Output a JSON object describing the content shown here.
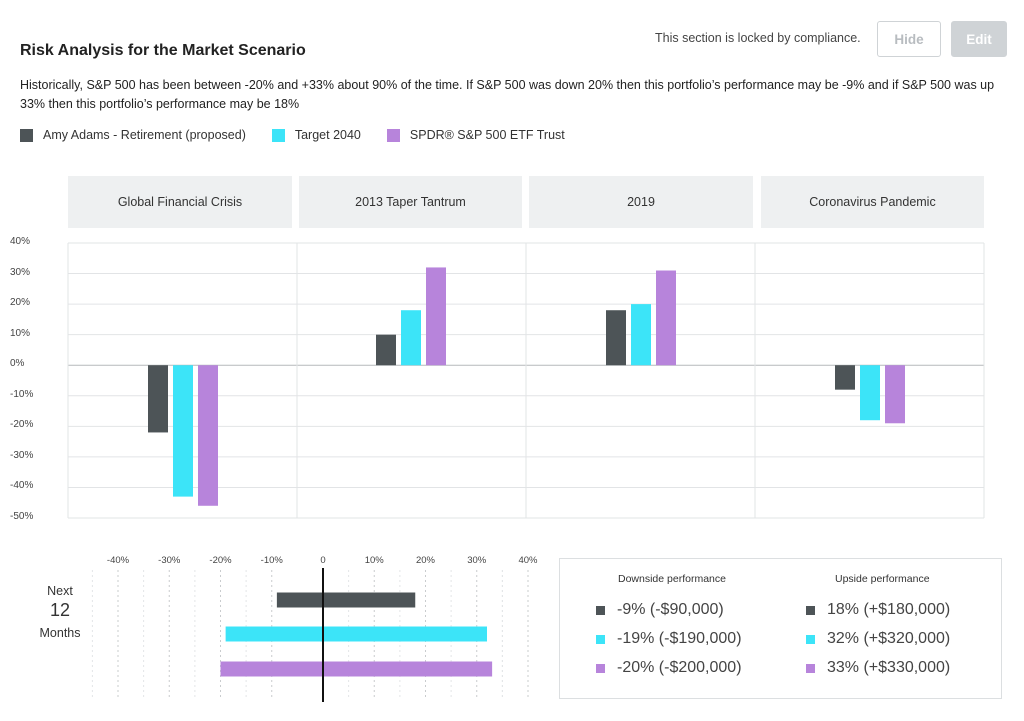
{
  "header": {
    "title": "Risk Analysis for the Market Scenario",
    "locked_text": "This section is locked by compliance.",
    "hide_label": "Hide",
    "edit_label": "Edit"
  },
  "description": "Historically, S&P 500 has been between -20% and +33% about 90% of the time. If S&P 500 was down 20% then this portfolio’s performance may be -9% and if S&P 500 was up 33% then this portfolio’s performance may be 18%",
  "colors": {
    "dark": "#4d5457",
    "cyan": "#3ce4f8",
    "purple": "#b784db",
    "grid": "#e2e4e6",
    "header_bg": "#eef0f1"
  },
  "legend": [
    {
      "label": "Amy Adams - Retirement (proposed)",
      "color": "#4d5457"
    },
    {
      "label": "Target 2040",
      "color": "#3ce4f8"
    },
    {
      "label": "SPDR® S&P 500 ETF Trust",
      "color": "#b784db"
    }
  ],
  "chart_data": [
    {
      "type": "bar",
      "categories": [
        "Global Financial Crisis",
        "2013 Taper Tantrum",
        "2019",
        "Coronavirus Pandemic"
      ],
      "series": [
        {
          "name": "Amy Adams - Retirement (proposed)",
          "color": "#4d5457",
          "values": [
            -22,
            10,
            18,
            -8
          ]
        },
        {
          "name": "Target 2040",
          "color": "#3ce4f8",
          "values": [
            -43,
            18,
            20,
            -18
          ]
        },
        {
          "name": "SPDR® S&P 500 ETF Trust",
          "color": "#b784db",
          "values": [
            -46,
            32,
            31,
            -19
          ]
        }
      ],
      "ylim": [
        -50,
        40
      ],
      "yticks": [
        40,
        30,
        20,
        10,
        0,
        -10,
        -20,
        -30,
        -40,
        -50
      ],
      "ytick_labels": [
        "40%",
        "30%",
        "20%",
        "10%",
        "0%",
        "-10%",
        "-20%",
        "-30%",
        "-40%",
        "-50%"
      ],
      "grid": true
    },
    {
      "type": "bar",
      "orientation": "horizontal",
      "row_label": {
        "line1": "Next",
        "line2": "12",
        "line3": "Months"
      },
      "series": [
        {
          "name": "Amy Adams - Retirement (proposed)",
          "color": "#4d5457",
          "range": [
            -9,
            18
          ]
        },
        {
          "name": "Target 2040",
          "color": "#3ce4f8",
          "range": [
            -19,
            32
          ]
        },
        {
          "name": "SPDR® S&P 500 ETF Trust",
          "color": "#b784db",
          "range": [
            -20,
            33
          ]
        }
      ],
      "xlim": [
        -40,
        40
      ],
      "xticks": [
        -40,
        -30,
        -20,
        -10,
        0,
        10,
        20,
        30,
        40
      ],
      "xtick_labels": [
        "-40%",
        "-30%",
        "-20%",
        "-10%",
        "0",
        "10%",
        "20%",
        "30%",
        "40%"
      ]
    }
  ],
  "performance": {
    "downside_title": "Downside performance",
    "upside_title": "Upside performance",
    "rows": [
      {
        "downside": "-9% (-$90,000)",
        "upside": "18% (+$180,000)",
        "color": "#4d5457"
      },
      {
        "downside": "-19% (-$190,000)",
        "upside": "32% (+$320,000)",
        "color": "#3ce4f8"
      },
      {
        "downside": "-20% (-$200,000)",
        "upside": "33% (+$330,000)",
        "color": "#b784db"
      }
    ]
  }
}
